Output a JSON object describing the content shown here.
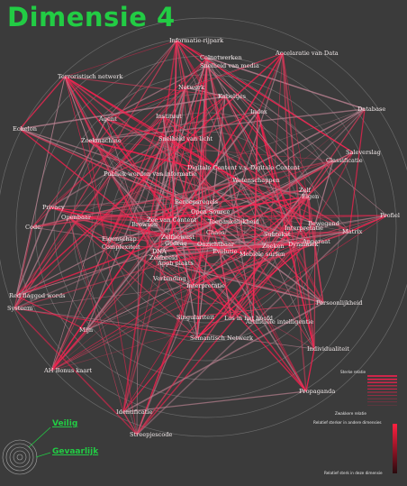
{
  "title": "Dimensie 4",
  "nodes": [
    {
      "id": "informatie-rijpark",
      "label": "Informatie-rijpark"
    },
    {
      "id": "accelaratie",
      "label": "Accelaratie van Data"
    },
    {
      "id": "terroristisch",
      "label": "Terroristisch netwerk"
    },
    {
      "id": "celnetwerken",
      "label": "Celnetwerken"
    },
    {
      "id": "snelheid-media",
      "label": "Snelheid van media"
    },
    {
      "id": "netwerk",
      "label": "Netwerk"
    },
    {
      "id": "kabeltjes",
      "label": "Kabeltjes"
    },
    {
      "id": "database",
      "label": "Database"
    },
    {
      "id": "index",
      "label": "Index"
    },
    {
      "id": "instituut",
      "label": "Instituut"
    },
    {
      "id": "agent",
      "label": "Agent"
    },
    {
      "id": "echelon",
      "label": "Echelon"
    },
    {
      "id": "zoekmachine",
      "label": "Zoekmachine"
    },
    {
      "id": "snelheid-licht",
      "label": "Snelheid van licht"
    },
    {
      "id": "saleverslag",
      "label": "Saleverslag"
    },
    {
      "id": "classificatie",
      "label": "Classificatie"
    },
    {
      "id": "digitale-content",
      "label": "Digitale Content v.s. Digitale Content"
    },
    {
      "id": "publiek-worden",
      "label": "Publiek worden van informatie"
    },
    {
      "id": "wetenschappen",
      "label": "Wetenschappen"
    },
    {
      "id": "zelf",
      "label": "Zelf"
    },
    {
      "id": "eigen",
      "label": "Eigen"
    },
    {
      "id": "beroepsregels",
      "label": "Beroepsregels"
    },
    {
      "id": "profiel",
      "label": "Profiel"
    },
    {
      "id": "privacy",
      "label": "Privacy"
    },
    {
      "id": "open-source",
      "label": "Open Source"
    },
    {
      "id": "openbaar",
      "label": "Openbaar"
    },
    {
      "id": "zee-van-content",
      "label": "Zee van Content"
    },
    {
      "id": "toegankelijkheid",
      "label": "Toegankelijkheid"
    },
    {
      "id": "bewegend",
      "label": "Bewegend"
    },
    {
      "id": "code",
      "label": "Code"
    },
    {
      "id": "browsen",
      "label": "Browsen"
    },
    {
      "id": "interpretatie",
      "label": "Interpretatie"
    },
    {
      "id": "matrix",
      "label": "Matrix"
    },
    {
      "id": "chaos",
      "label": "Chaos"
    },
    {
      "id": "subtekst",
      "label": "Subtekst"
    },
    {
      "id": "eigenschap",
      "label": "Eigenschap"
    },
    {
      "id": "zelfbewust",
      "label": "Zelfbewust"
    },
    {
      "id": "complexiteit",
      "label": "Complexiteit"
    },
    {
      "id": "gedrag",
      "label": "Gedrag"
    },
    {
      "id": "onzichtbaar",
      "label": "Onzichtbaar"
    },
    {
      "id": "zoeken",
      "label": "Zoeken"
    },
    {
      "id": "dna",
      "label": "DNA"
    },
    {
      "id": "evolutie",
      "label": "Evolutie"
    },
    {
      "id": "mobiele-surfen",
      "label": "Mobiele surfen"
    },
    {
      "id": "zelfbeeld",
      "label": "Zelfbeeld"
    },
    {
      "id": "apparaat",
      "label": "Apparaat"
    },
    {
      "id": "dynamiek",
      "label": "Dynamiek"
    },
    {
      "id": "appb-plaats",
      "label": "Appb plaats"
    },
    {
      "id": "red-flagged",
      "label": "Red flagged words"
    },
    {
      "id": "verbinding",
      "label": "Verbinding"
    },
    {
      "id": "systeem",
      "label": "Systeem"
    },
    {
      "id": "persoonlijkheid",
      "label": "Persoonlijkheid"
    },
    {
      "id": "interpretatie-2",
      "label": "Interpretatie"
    },
    {
      "id": "singulariteit",
      "label": "Singulariteit"
    },
    {
      "id": "los-in-hoofd",
      "label": "Los in het hoofd"
    },
    {
      "id": "kunstmatige",
      "label": "Artificiële intelligentie"
    },
    {
      "id": "mijn",
      "label": "Mijn"
    },
    {
      "id": "semantisch",
      "label": "Semantisch Netwerk"
    },
    {
      "id": "individualiteit",
      "label": "Individualiteit"
    },
    {
      "id": "ah-bonus",
      "label": "AH Bonus kaart"
    },
    {
      "id": "propaganda",
      "label": "Propaganda"
    },
    {
      "id": "identificatie",
      "label": "Identificatie"
    },
    {
      "id": "streepjescode",
      "label": "Streepjescode"
    }
  ],
  "edge_colors": {
    "weak": "#b8808f",
    "mid": "#d63a5a",
    "strong": "#ff1f4f"
  },
  "legend": {
    "strong_label": "Sterke relatie",
    "weak_label": "Zwakkere relatie",
    "other_dim_label": "Relatief sterker in andere dimensies",
    "this_dim_label": "Relatief sterk in deze dimensie",
    "gradient_top": "#ff2040",
    "gradient_bottom": "#2a0a0e"
  },
  "links": {
    "safe": "Veilig",
    "dangerous": "Gevaarlijk"
  }
}
